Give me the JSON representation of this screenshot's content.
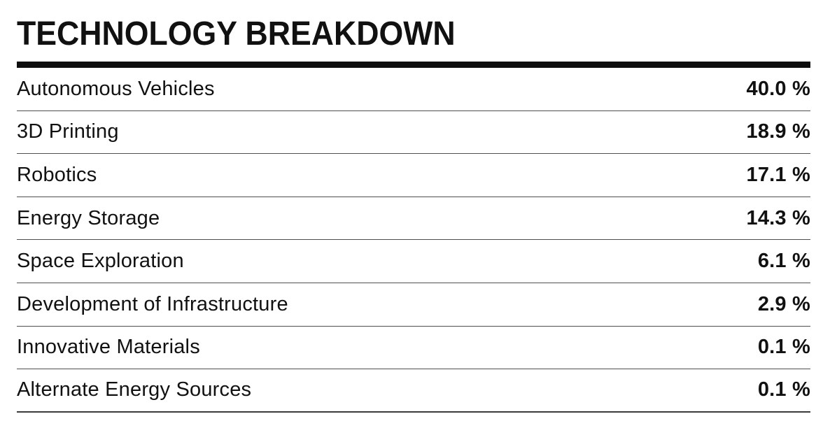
{
  "title": "TECHNOLOGY BREAKDOWN",
  "rows": [
    {
      "label": "Autonomous Vehicles",
      "value_display": "40.0 %"
    },
    {
      "label": "3D Printing",
      "value_display": "18.9 %"
    },
    {
      "label": "Robotics",
      "value_display": "17.1 %"
    },
    {
      "label": "Energy Storage",
      "value_display": "14.3 %"
    },
    {
      "label": "Space Exploration",
      "value_display": "6.1 %"
    },
    {
      "label": "Development of Infrastructure",
      "value_display": "2.9 %"
    },
    {
      "label": "Innovative Materials",
      "value_display": "0.1 %"
    },
    {
      "label": "Alternate Energy Sources",
      "value_display": "0.1 %"
    }
  ],
  "colors": {
    "text": "#111111",
    "title_rule": "#0d0d0d",
    "row_divider": "#4f4f4f",
    "bottom_rule": "#3a3a3a",
    "background": "#ffffff"
  },
  "chart_data": {
    "type": "table",
    "title": "TECHNOLOGY BREAKDOWN",
    "categories": [
      "Autonomous Vehicles",
      "3D Printing",
      "Robotics",
      "Energy Storage",
      "Space Exploration",
      "Development of Infrastructure",
      "Innovative Materials",
      "Alternate Energy Sources"
    ],
    "values": [
      40.0,
      18.9,
      17.1,
      14.3,
      6.1,
      2.9,
      0.1,
      0.1
    ],
    "unit": "%"
  }
}
